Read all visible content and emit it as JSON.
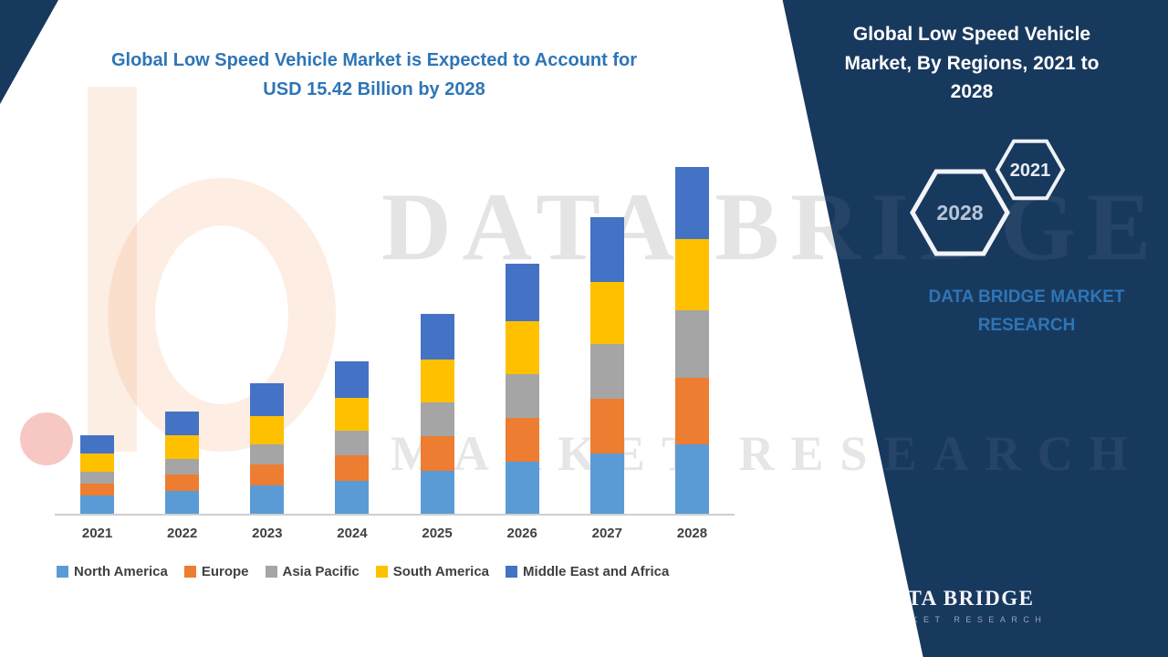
{
  "headline": {
    "line1": "Global Low Speed Vehicle Market is Expected to Account for",
    "line2": "USD 15.42 Billion by 2028"
  },
  "watermark": {
    "line1": "DATA BRIDGE",
    "line2": "MARKET RESEARCH"
  },
  "side_panel": {
    "title": "Global Low Speed Vehicle Market, By Regions, 2021 to 2028",
    "hexagon_years": [
      "2021",
      "2028"
    ],
    "brand_text": "DATA BRIDGE MARKET RESEARCH",
    "logo": {
      "letter": "b",
      "name": "DATA BRIDGE",
      "tagline": "MARKET RESEARCH"
    }
  },
  "colors": {
    "panel_navy": "#18395e",
    "headline_blue": "#2e75b6",
    "axis_text": "#404040",
    "orange_accent": "#ed7d31"
  },
  "chart_data": {
    "type": "bar",
    "stacked": true,
    "title": "Global Low Speed Vehicle Market, By Regions, 2021 to 2028",
    "unit": "USD Billion",
    "xlabel": "",
    "ylabel": "",
    "gridlines": false,
    "legend_position": "bottom",
    "annotation": "USD 15.42 Billion by 2028",
    "categories": [
      "2021",
      "2022",
      "2023",
      "2024",
      "2025",
      "2026",
      "2027",
      "2028"
    ],
    "series": [
      {
        "name": "North America",
        "color": "#5b9bd5",
        "values": [
          0.8,
          1.0,
          1.25,
          1.45,
          1.9,
          2.3,
          2.7,
          3.1
        ]
      },
      {
        "name": "Europe",
        "color": "#ed7d31",
        "values": [
          0.55,
          0.75,
          0.95,
          1.15,
          1.55,
          1.95,
          2.4,
          2.95
        ]
      },
      {
        "name": "Asia Pacific",
        "color": "#a5a5a5",
        "values": [
          0.5,
          0.7,
          0.9,
          1.1,
          1.5,
          1.95,
          2.45,
          3.0
        ]
      },
      {
        "name": "South America",
        "color": "#ffc000",
        "values": [
          0.85,
          1.05,
          1.25,
          1.45,
          1.9,
          2.35,
          2.75,
          3.15
        ]
      },
      {
        "name": "Middle East and Africa",
        "color": "#4472c4",
        "values": [
          0.8,
          1.05,
          1.45,
          1.65,
          2.05,
          2.55,
          2.9,
          3.22
        ]
      }
    ],
    "totals_estimated": [
      3.5,
      4.55,
      5.8,
      6.8,
      8.9,
      11.1,
      13.2,
      15.42
    ],
    "ylim": [
      0,
      15.42
    ]
  }
}
